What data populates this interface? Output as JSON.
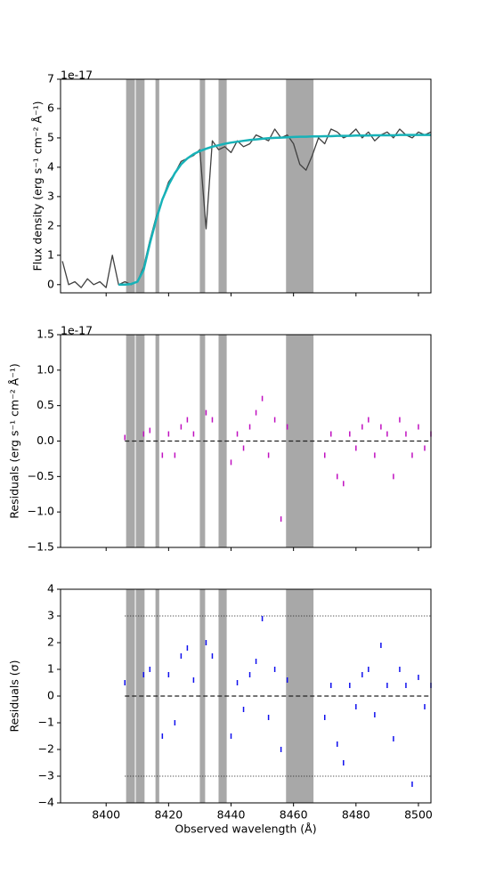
{
  "chart_data": [
    {
      "type": "line",
      "ylabel": "Flux density (erg s⁻¹ cm⁻² Å⁻¹)",
      "offset_text": "1e-17",
      "x": [
        8386,
        8388,
        8390,
        8392,
        8394,
        8396,
        8398,
        8400,
        8402,
        8404,
        8406,
        8408,
        8410,
        8412,
        8414,
        8416,
        8418,
        8420,
        8422,
        8424,
        8426,
        8428,
        8430,
        8432,
        8434,
        8436,
        8438,
        8440,
        8442,
        8444,
        8446,
        8448,
        8450,
        8452,
        8454,
        8456,
        8458,
        8460,
        8462,
        8464,
        8466,
        8468,
        8470,
        8472,
        8474,
        8476,
        8478,
        8480,
        8482,
        8484,
        8486,
        8488,
        8490,
        8492,
        8494,
        8496,
        8498,
        8500,
        8502,
        8504
      ],
      "series": [
        {
          "color": "#404040",
          "width": 1.3,
          "values": [
            0.8,
            0.0,
            0.1,
            -0.1,
            0.2,
            0.0,
            0.1,
            -0.1,
            1.0,
            0.0,
            0.1,
            0.0,
            0.1,
            0.6,
            1.5,
            2.3,
            2.9,
            3.5,
            3.8,
            4.2,
            4.3,
            4.4,
            4.6,
            1.9,
            4.9,
            4.6,
            4.7,
            4.5,
            4.9,
            4.7,
            4.8,
            5.1,
            5.0,
            4.9,
            5.3,
            5.0,
            5.1,
            4.8,
            4.1,
            3.9,
            4.4,
            5.0,
            4.8,
            5.3,
            5.2,
            5.0,
            5.1,
            5.3,
            5.0,
            5.2,
            4.9,
            5.1,
            5.2,
            5.0,
            5.3,
            5.1,
            5.0,
            5.2,
            5.1,
            5.2
          ]
        },
        {
          "color": "#17b2b8",
          "width": 2.5,
          "values": [
            null,
            null,
            null,
            null,
            null,
            null,
            null,
            null,
            null,
            0.0,
            0.0,
            0.02,
            0.1,
            0.5,
            1.4,
            2.2,
            2.9,
            3.4,
            3.8,
            4.1,
            4.3,
            4.45,
            4.55,
            4.63,
            4.7,
            4.75,
            4.8,
            4.84,
            4.87,
            4.9,
            4.93,
            4.95,
            4.97,
            4.99,
            5.0,
            5.01,
            5.02,
            5.03,
            5.04,
            5.04,
            5.05,
            5.05,
            5.06,
            5.06,
            5.07,
            5.07,
            5.07,
            5.08,
            5.08,
            5.08,
            5.09,
            5.09,
            5.09,
            5.09,
            5.1,
            5.1,
            5.1,
            5.1,
            5.1,
            5.1
          ]
        }
      ],
      "masks": [
        [
          8406.4,
          8409.2
        ],
        [
          8409.5,
          8412.3
        ],
        [
          8415.8,
          8417
        ],
        [
          8430,
          8431.7
        ],
        [
          8436,
          8438.6
        ],
        [
          8457.6,
          8466.4
        ]
      ],
      "mask_color": "#999999",
      "xlim": [
        8385.4,
        8504
      ],
      "xticks": [
        8400,
        8420,
        8440,
        8460,
        8480,
        8500
      ],
      "ylim": [
        -0.28,
        7
      ],
      "yticks": [
        0,
        1,
        2,
        3,
        4,
        5,
        6,
        7
      ]
    },
    {
      "type": "scatter",
      "ylabel": "Residuals (erg s⁻¹ cm⁻² Å⁻¹)",
      "offset_text": "1e-17",
      "x": [
        8406,
        8408,
        8410,
        8412,
        8414,
        8416,
        8418,
        8420,
        8422,
        8424,
        8426,
        8428,
        8430,
        8432,
        8434,
        8436,
        8438,
        8440,
        8442,
        8444,
        8446,
        8448,
        8450,
        8452,
        8454,
        8456,
        8458,
        8460,
        8462,
        8464,
        8466,
        8468,
        8470,
        8472,
        8474,
        8476,
        8478,
        8480,
        8482,
        8484,
        8486,
        8488,
        8490,
        8492,
        8494,
        8496,
        8498,
        8500,
        8502,
        8504
      ],
      "series": [
        {
          "color": "#c010c0",
          "values": [
            0.05,
            null,
            null,
            0.1,
            0.15,
            null,
            -0.2,
            0.1,
            -0.2,
            0.2,
            0.3,
            0.1,
            null,
            0.4,
            0.3,
            null,
            null,
            -0.3,
            0.1,
            -0.1,
            0.2,
            0.4,
            0.6,
            -0.2,
            0.3,
            -1.1,
            0.2,
            null,
            null,
            null,
            null,
            null,
            -0.2,
            0.1,
            -0.5,
            -0.6,
            0.1,
            -0.1,
            0.2,
            0.3,
            -0.2,
            0.2,
            0.1,
            -0.5,
            0.3,
            0.1,
            -0.2,
            0.2,
            -0.1,
            0.1
          ]
        }
      ],
      "hlines": [
        {
          "value": 0,
          "style": "dashed"
        }
      ],
      "masks": [
        [
          8406.4,
          8409.2
        ],
        [
          8409.5,
          8412.3
        ],
        [
          8415.8,
          8417
        ],
        [
          8430,
          8431.7
        ],
        [
          8436,
          8438.6
        ],
        [
          8457.6,
          8466.4
        ]
      ],
      "mask_color": "#999999",
      "xlim": [
        8385.4,
        8504
      ],
      "xticks": [
        8400,
        8420,
        8440,
        8460,
        8480,
        8500
      ],
      "ylim": [
        -1.5,
        1.5
      ],
      "yticks": [
        {
          "value": -1.5,
          "label": "−1.5"
        },
        {
          "value": -1,
          "label": "−1.0"
        },
        {
          "value": -0.5,
          "label": "−0.5"
        },
        {
          "value": 0,
          "label": "0.0"
        },
        0.5,
        {
          "value": 1,
          "label": "1.0"
        },
        1.5
      ]
    },
    {
      "type": "scatter",
      "ylabel": "Residuals (σ)",
      "xlabel": "Observed wavelength (Å)",
      "x": [
        8406,
        8408,
        8410,
        8412,
        8414,
        8416,
        8418,
        8420,
        8422,
        8424,
        8426,
        8428,
        8430,
        8432,
        8434,
        8436,
        8438,
        8440,
        8442,
        8444,
        8446,
        8448,
        8450,
        8452,
        8454,
        8456,
        8458,
        8460,
        8462,
        8464,
        8466,
        8468,
        8470,
        8472,
        8474,
        8476,
        8478,
        8480,
        8482,
        8484,
        8486,
        8488,
        8490,
        8492,
        8494,
        8496,
        8498,
        8500,
        8502,
        8504
      ],
      "series": [
        {
          "color": "#1010ee",
          "values": [
            0.5,
            null,
            null,
            0.8,
            1.0,
            null,
            -1.5,
            0.8,
            -1.0,
            1.5,
            1.8,
            0.6,
            null,
            2.0,
            1.5,
            null,
            null,
            -1.5,
            0.5,
            -0.5,
            0.8,
            1.3,
            2.9,
            -0.8,
            1.0,
            -2.0,
            0.6,
            null,
            null,
            null,
            null,
            null,
            -0.8,
            0.4,
            -1.8,
            -2.5,
            0.4,
            -0.4,
            0.8,
            1.0,
            -0.7,
            1.9,
            0.4,
            -1.6,
            1.0,
            0.4,
            -3.3,
            0.7,
            -0.4,
            0.4
          ]
        }
      ],
      "hlines": [
        {
          "value": 0,
          "style": "dashed"
        },
        {
          "value": 3,
          "style": "dotted"
        },
        {
          "value": -3,
          "style": "dotted"
        }
      ],
      "masks": [
        [
          8406.4,
          8409.2
        ],
        [
          8409.5,
          8412.3
        ],
        [
          8415.8,
          8417
        ],
        [
          8430,
          8431.7
        ],
        [
          8436,
          8438.6
        ],
        [
          8457.6,
          8466.4
        ]
      ],
      "mask_color": "#999999",
      "xlim": [
        8385.4,
        8504
      ],
      "xticks": [
        8400,
        8420,
        8440,
        8460,
        8480,
        8500
      ],
      "ylim": [
        -4,
        4
      ],
      "yticks": [
        {
          "value": -4,
          "label": "−4"
        },
        {
          "value": -3,
          "label": "−3"
        },
        {
          "value": -2,
          "label": "−2"
        },
        {
          "value": -1,
          "label": "−1"
        },
        0,
        1,
        2,
        3,
        4
      ]
    }
  ]
}
